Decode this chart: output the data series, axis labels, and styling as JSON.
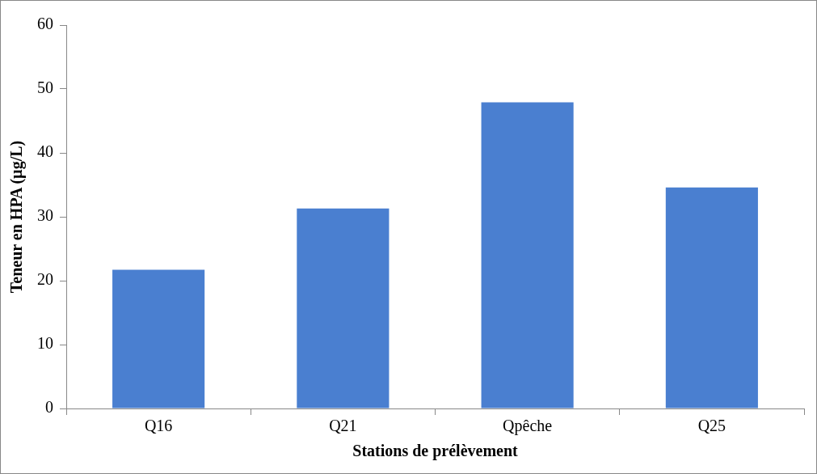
{
  "chart_data": {
    "type": "bar",
    "xlabel": "Stations de prélèvement",
    "ylabel": "Teneur en HPA (µg/L)",
    "categories": [
      "Q16",
      "Q21",
      "Qpêche",
      "Q25"
    ],
    "values": [
      21.7,
      31.3,
      47.9,
      34.6
    ],
    "color": "#4a7fd0",
    "ylim": [
      0,
      60
    ],
    "yticks": [
      0,
      10,
      20,
      30,
      40,
      50,
      60
    ],
    "grid": false,
    "legend": false
  }
}
